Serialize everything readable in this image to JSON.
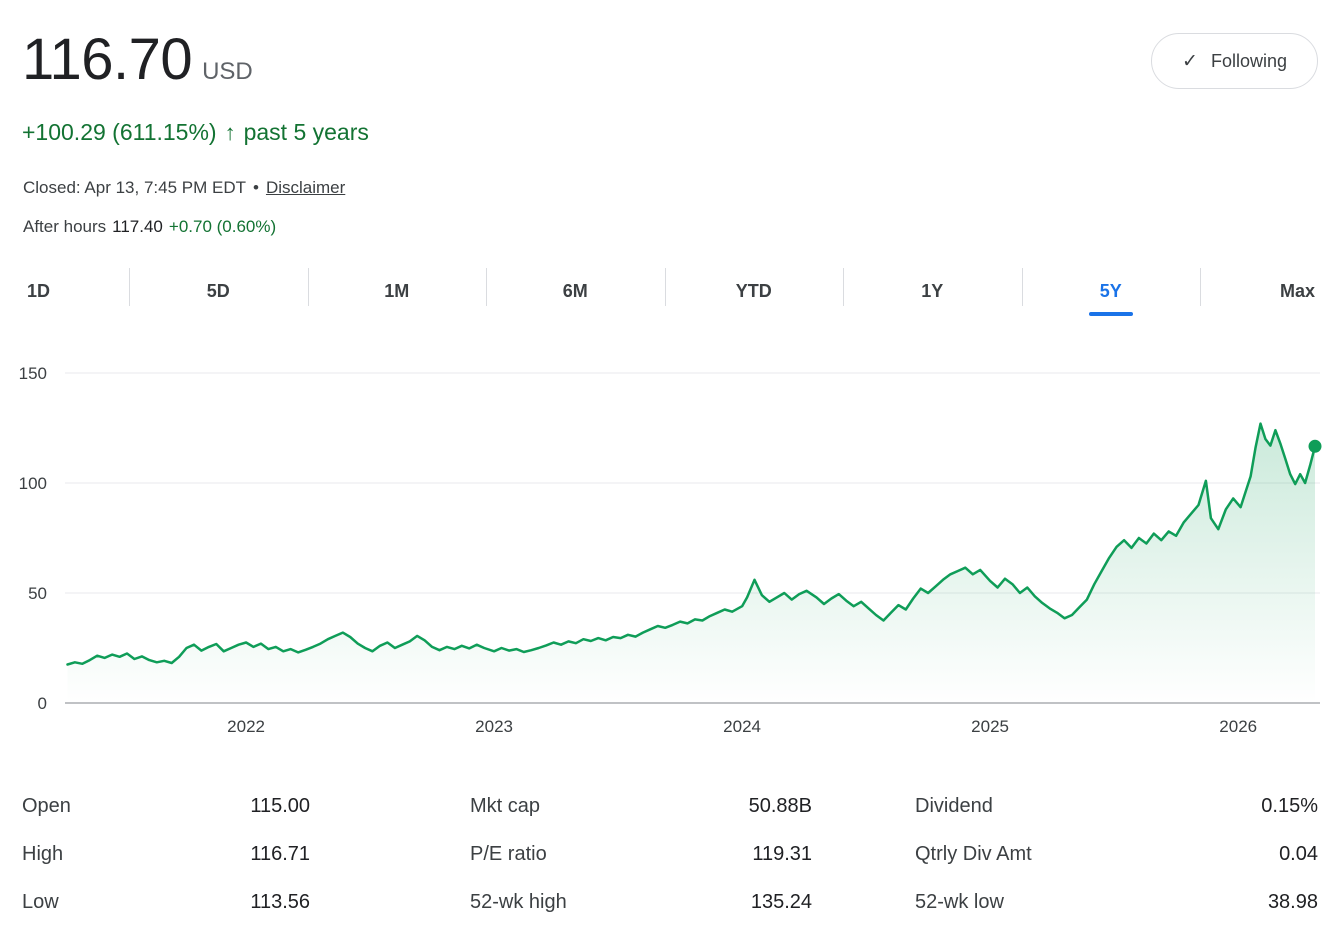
{
  "colors": {
    "green_text": "#137333",
    "chart_line": "#0f9d58",
    "selected_tab": "#1a73e8"
  },
  "header": {
    "price": "116.70",
    "currency": "USD",
    "check_icon": "✓",
    "following_label": "Following"
  },
  "change_line": {
    "change_text": "+100.29 (611.15%)",
    "arrow": "↑",
    "period_text": "past 5 years"
  },
  "status_line": {
    "closed_text": "Closed: Apr 13, 7:45 PM EDT",
    "separator": "•",
    "disclaimer_label": "Disclaimer"
  },
  "after_hours": {
    "label": "After hours",
    "price": "117.40",
    "change": "+0.70 (0.60%)"
  },
  "tabs": {
    "selected_color": "#1a73e8",
    "items": [
      {
        "label": "1D",
        "selected": false
      },
      {
        "label": "5D",
        "selected": false
      },
      {
        "label": "1M",
        "selected": false
      },
      {
        "label": "6M",
        "selected": false
      },
      {
        "label": "YTD",
        "selected": false
      },
      {
        "label": "1Y",
        "selected": false
      },
      {
        "label": "5Y",
        "selected": true
      },
      {
        "label": "Max",
        "selected": false
      }
    ]
  },
  "chart_data": {
    "type": "line",
    "xlabel": "",
    "ylabel": "",
    "x_ticks": [
      2022,
      2023,
      2024,
      2025,
      2026
    ],
    "y_ticks": [
      150,
      100,
      50,
      0
    ],
    "x_domain": [
      2021.27,
      2026.33
    ],
    "y_domain": [
      0,
      155
    ],
    "line_color": "#0f9d58",
    "end_dot_color": "#0f9d58",
    "grid_color": "#e8eaed",
    "baseline_color": "#80868b",
    "points": [
      [
        2021.28,
        17.5
      ],
      [
        2021.31,
        18.5
      ],
      [
        2021.34,
        17.8
      ],
      [
        2021.37,
        19.5
      ],
      [
        2021.4,
        21.5
      ],
      [
        2021.43,
        20.5
      ],
      [
        2021.46,
        22
      ],
      [
        2021.49,
        21
      ],
      [
        2021.52,
        22.5
      ],
      [
        2021.55,
        20
      ],
      [
        2021.58,
        21.2
      ],
      [
        2021.61,
        19.5
      ],
      [
        2021.64,
        18.5
      ],
      [
        2021.67,
        19.2
      ],
      [
        2021.7,
        18.2
      ],
      [
        2021.73,
        21
      ],
      [
        2021.76,
        25
      ],
      [
        2021.79,
        26.5
      ],
      [
        2021.82,
        23.8
      ],
      [
        2021.85,
        25.5
      ],
      [
        2021.88,
        26.8
      ],
      [
        2021.91,
        23.5
      ],
      [
        2021.94,
        25
      ],
      [
        2021.97,
        26.5
      ],
      [
        2022.0,
        27.5
      ],
      [
        2022.03,
        25.5
      ],
      [
        2022.06,
        27
      ],
      [
        2022.09,
        24.5
      ],
      [
        2022.12,
        25.5
      ],
      [
        2022.15,
        23.5
      ],
      [
        2022.18,
        24.5
      ],
      [
        2022.21,
        23
      ],
      [
        2022.24,
        24.2
      ],
      [
        2022.27,
        25.5
      ],
      [
        2022.3,
        27
      ],
      [
        2022.33,
        29
      ],
      [
        2022.36,
        30.5
      ],
      [
        2022.39,
        32
      ],
      [
        2022.42,
        30
      ],
      [
        2022.45,
        27
      ],
      [
        2022.48,
        25
      ],
      [
        2022.51,
        23.5
      ],
      [
        2022.54,
        26
      ],
      [
        2022.57,
        27.5
      ],
      [
        2022.6,
        25
      ],
      [
        2022.63,
        26.5
      ],
      [
        2022.66,
        28
      ],
      [
        2022.69,
        30.5
      ],
      [
        2022.72,
        28.5
      ],
      [
        2022.75,
        25.5
      ],
      [
        2022.78,
        24
      ],
      [
        2022.81,
        25.5
      ],
      [
        2022.84,
        24.5
      ],
      [
        2022.87,
        26
      ],
      [
        2022.9,
        24.8
      ],
      [
        2022.93,
        26.5
      ],
      [
        2022.96,
        25
      ],
      [
        2023.0,
        23.5
      ],
      [
        2023.03,
        25
      ],
      [
        2023.06,
        23.8
      ],
      [
        2023.09,
        24.5
      ],
      [
        2023.12,
        23.2
      ],
      [
        2023.15,
        24
      ],
      [
        2023.18,
        25
      ],
      [
        2023.21,
        26.2
      ],
      [
        2023.24,
        27.5
      ],
      [
        2023.27,
        26.5
      ],
      [
        2023.3,
        28
      ],
      [
        2023.33,
        27.2
      ],
      [
        2023.36,
        29
      ],
      [
        2023.39,
        28.2
      ],
      [
        2023.42,
        29.5
      ],
      [
        2023.45,
        28.5
      ],
      [
        2023.48,
        30
      ],
      [
        2023.51,
        29.5
      ],
      [
        2023.54,
        31
      ],
      [
        2023.57,
        30.2
      ],
      [
        2023.6,
        32
      ],
      [
        2023.63,
        33.5
      ],
      [
        2023.66,
        35
      ],
      [
        2023.69,
        34.2
      ],
      [
        2023.72,
        35.5
      ],
      [
        2023.75,
        37
      ],
      [
        2023.78,
        36.2
      ],
      [
        2023.81,
        38
      ],
      [
        2023.84,
        37.5
      ],
      [
        2023.87,
        39.5
      ],
      [
        2023.9,
        41
      ],
      [
        2023.93,
        42.5
      ],
      [
        2023.96,
        41.5
      ],
      [
        2024.0,
        44
      ],
      [
        2024.02,
        48
      ],
      [
        2024.05,
        56
      ],
      [
        2024.08,
        49
      ],
      [
        2024.11,
        46
      ],
      [
        2024.14,
        48
      ],
      [
        2024.17,
        50
      ],
      [
        2024.2,
        47
      ],
      [
        2024.23,
        49.5
      ],
      [
        2024.26,
        51
      ],
      [
        2024.3,
        48
      ],
      [
        2024.33,
        45
      ],
      [
        2024.36,
        47.5
      ],
      [
        2024.39,
        49.5
      ],
      [
        2024.42,
        46.5
      ],
      [
        2024.45,
        44
      ],
      [
        2024.48,
        46
      ],
      [
        2024.51,
        43
      ],
      [
        2024.54,
        40
      ],
      [
        2024.57,
        37.5
      ],
      [
        2024.6,
        41
      ],
      [
        2024.63,
        44.5
      ],
      [
        2024.66,
        42.5
      ],
      [
        2024.69,
        47.5
      ],
      [
        2024.72,
        52
      ],
      [
        2024.75,
        50
      ],
      [
        2024.78,
        53
      ],
      [
        2024.81,
        56
      ],
      [
        2024.84,
        58.5
      ],
      [
        2024.87,
        60
      ],
      [
        2024.9,
        61.5
      ],
      [
        2024.93,
        58.5
      ],
      [
        2024.96,
        60.5
      ],
      [
        2025.0,
        55.5
      ],
      [
        2025.03,
        52.5
      ],
      [
        2025.06,
        56.5
      ],
      [
        2025.09,
        54
      ],
      [
        2025.12,
        50
      ],
      [
        2025.15,
        52.5
      ],
      [
        2025.18,
        48.5
      ],
      [
        2025.21,
        45.5
      ],
      [
        2025.24,
        43
      ],
      [
        2025.27,
        41
      ],
      [
        2025.3,
        38.5
      ],
      [
        2025.33,
        40
      ],
      [
        2025.36,
        43.5
      ],
      [
        2025.39,
        47
      ],
      [
        2025.42,
        54
      ],
      [
        2025.45,
        60
      ],
      [
        2025.48,
        66
      ],
      [
        2025.51,
        71
      ],
      [
        2025.54,
        74
      ],
      [
        2025.57,
        70.5
      ],
      [
        2025.6,
        75
      ],
      [
        2025.63,
        72.5
      ],
      [
        2025.66,
        77
      ],
      [
        2025.69,
        74
      ],
      [
        2025.72,
        78
      ],
      [
        2025.75,
        76
      ],
      [
        2025.78,
        82
      ],
      [
        2025.81,
        86
      ],
      [
        2025.84,
        90
      ],
      [
        2025.87,
        101
      ],
      [
        2025.89,
        84
      ],
      [
        2025.92,
        79
      ],
      [
        2025.95,
        88
      ],
      [
        2025.98,
        93
      ],
      [
        2026.01,
        89
      ],
      [
        2026.03,
        96
      ],
      [
        2026.05,
        103
      ],
      [
        2026.07,
        116
      ],
      [
        2026.09,
        127
      ],
      [
        2026.11,
        120
      ],
      [
        2026.13,
        117
      ],
      [
        2026.15,
        124
      ],
      [
        2026.17,
        118
      ],
      [
        2026.19,
        111
      ],
      [
        2026.21,
        104
      ],
      [
        2026.23,
        99.5
      ],
      [
        2026.25,
        104
      ],
      [
        2026.27,
        100
      ],
      [
        2026.29,
        108
      ],
      [
        2026.31,
        116.7
      ]
    ]
  },
  "stats": {
    "rows": [
      [
        {
          "label": "Open",
          "value": "115.00"
        },
        {
          "label": "Mkt cap",
          "value": "50.88B"
        },
        {
          "label": "Dividend",
          "value": "0.15%"
        }
      ],
      [
        {
          "label": "High",
          "value": "116.71"
        },
        {
          "label": "P/E ratio",
          "value": "119.31"
        },
        {
          "label": "Qtrly Div Amt",
          "value": "0.04"
        }
      ],
      [
        {
          "label": "Low",
          "value": "113.56"
        },
        {
          "label": "52-wk high",
          "value": "135.24"
        },
        {
          "label": "52-wk low",
          "value": "38.98"
        }
      ]
    ]
  }
}
